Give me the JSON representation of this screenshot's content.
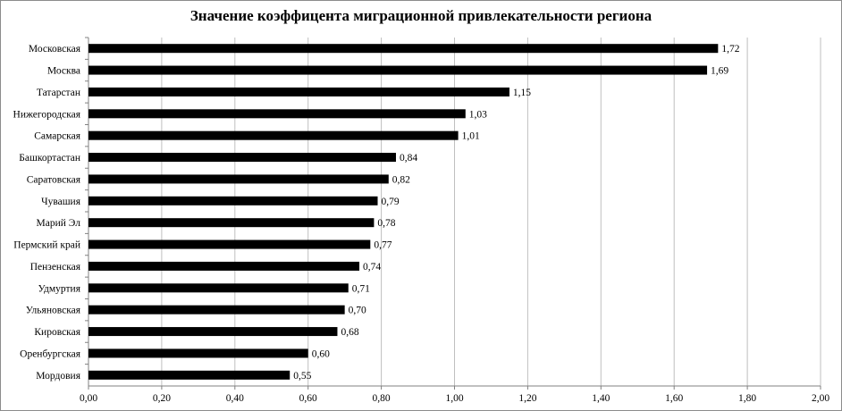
{
  "chart_data": {
    "type": "bar",
    "orientation": "horizontal",
    "title": "Значение коэффицента миграционной привлекательности региона",
    "xlabel": "",
    "ylabel": "",
    "categories": [
      "Московская",
      "Москва",
      "Татарстан",
      "Нижегородская",
      "Самарская",
      "Башкортастан",
      "Саратовская",
      "Чувашия",
      "Марий Эл",
      "Пермский край",
      "Пензенская",
      "Удмуртия",
      "Ульяновская",
      "Кировская",
      "Оренбургская",
      "Мордовия"
    ],
    "values": [
      1.72,
      1.69,
      1.15,
      1.03,
      1.01,
      0.84,
      0.82,
      0.79,
      0.78,
      0.77,
      0.74,
      0.71,
      0.7,
      0.68,
      0.6,
      0.55
    ],
    "value_labels": [
      "1,72",
      "1,69",
      "1,15",
      "1,03",
      "1,01",
      "0,84",
      "0,82",
      "0,79",
      "0,78",
      "0,77",
      "0,74",
      "0,71",
      "0,70",
      "0,68",
      "0,60",
      "0,55"
    ],
    "xlim": [
      0,
      2
    ],
    "x_ticks": [
      "0,00",
      "0,20",
      "0,40",
      "0,60",
      "0,80",
      "1,00",
      "1,20",
      "1,40",
      "1,60",
      "1,80",
      "2,00"
    ],
    "grid": "vertical",
    "legend": "none",
    "bar_color": "#000000",
    "grid_color": "#bfbfbf"
  }
}
